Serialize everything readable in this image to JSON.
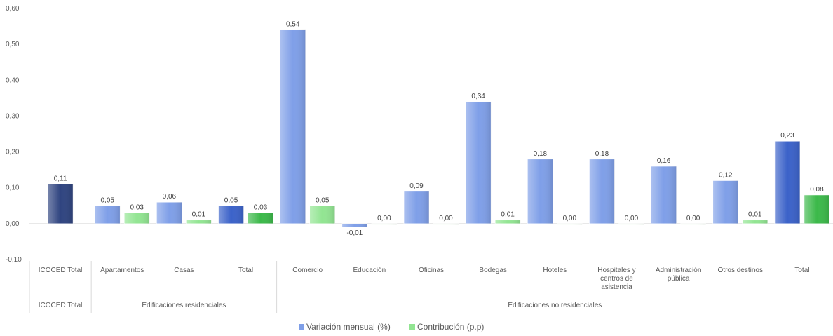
{
  "chart_data": {
    "type": "bar",
    "ylim": [
      -0.1,
      0.6
    ],
    "yticks": [
      "-0,10",
      "0,00",
      "0,10",
      "0,20",
      "0,30",
      "0,40",
      "0,50",
      "0,60"
    ],
    "legend_position": "bottom",
    "series": [
      {
        "name": "Variación mensual (%)",
        "color": "#7f9fe8"
      },
      {
        "name": "Contribución (p.p)",
        "color": "#92e592"
      }
    ],
    "bars": [
      {
        "cat": 0,
        "series": 0,
        "value": 0.11,
        "label": "0,11",
        "color": "#2f4480"
      },
      {
        "cat": 1,
        "series": 0,
        "value": 0.05,
        "label": "0,05"
      },
      {
        "cat": 1,
        "series": 1,
        "value": 0.03,
        "label": "0,03"
      },
      {
        "cat": 2,
        "series": 0,
        "value": 0.06,
        "label": "0,06"
      },
      {
        "cat": 2,
        "series": 1,
        "value": 0.01,
        "label": "0,01"
      },
      {
        "cat": 3,
        "series": 0,
        "value": 0.05,
        "label": "0,05",
        "color": "#3b62c9"
      },
      {
        "cat": 3,
        "series": 1,
        "value": 0.03,
        "label": "0,03",
        "color": "#3cb94a"
      },
      {
        "cat": 4,
        "series": 0,
        "value": 0.54,
        "label": "0,54"
      },
      {
        "cat": 4,
        "series": 1,
        "value": 0.05,
        "label": "0,05"
      },
      {
        "cat": 5,
        "series": 0,
        "value": -0.01,
        "label": "-0,01"
      },
      {
        "cat": 5,
        "series": 1,
        "value": 0.0,
        "label": "0,00"
      },
      {
        "cat": 6,
        "series": 0,
        "value": 0.09,
        "label": "0,09"
      },
      {
        "cat": 6,
        "series": 1,
        "value": 0.0,
        "label": "0,00"
      },
      {
        "cat": 7,
        "series": 0,
        "value": 0.34,
        "label": "0,34"
      },
      {
        "cat": 7,
        "series": 1,
        "value": 0.01,
        "label": "0,01"
      },
      {
        "cat": 8,
        "series": 0,
        "value": 0.18,
        "label": "0,18"
      },
      {
        "cat": 8,
        "series": 1,
        "value": 0.0,
        "label": "0,00"
      },
      {
        "cat": 9,
        "series": 0,
        "value": 0.18,
        "label": "0,18"
      },
      {
        "cat": 9,
        "series": 1,
        "value": 0.0,
        "label": "0,00"
      },
      {
        "cat": 10,
        "series": 0,
        "value": 0.16,
        "label": "0,16"
      },
      {
        "cat": 10,
        "series": 1,
        "value": 0.0,
        "label": "0,00"
      },
      {
        "cat": 11,
        "series": 0,
        "value": 0.12,
        "label": "0,12"
      },
      {
        "cat": 11,
        "series": 1,
        "value": 0.01,
        "label": "0,01"
      },
      {
        "cat": 12,
        "series": 0,
        "value": 0.23,
        "label": "0,23",
        "color": "#3b62c9"
      },
      {
        "cat": 12,
        "series": 1,
        "value": 0.08,
        "label": "0,08",
        "color": "#3cb94a"
      }
    ],
    "categories": [
      [
        "ICOCED Total"
      ],
      [
        "Apartamentos"
      ],
      [
        "Casas"
      ],
      [
        "Total"
      ],
      [
        "Comercio"
      ],
      [
        "Educación"
      ],
      [
        "Oficinas"
      ],
      [
        "Bodegas"
      ],
      [
        "Hoteles"
      ],
      [
        "Hospitales y",
        "centros de",
        "asistencia"
      ],
      [
        "Administración",
        "pública"
      ],
      [
        "Otros destinos"
      ],
      [
        "Total"
      ]
    ],
    "groups": [
      {
        "label": "ICOCED Total",
        "start": 0,
        "end": 0
      },
      {
        "label": "Edificaciones residenciales",
        "start": 1,
        "end": 3
      },
      {
        "label": "Edificaciones no residenciales",
        "start": 4,
        "end": 12
      }
    ]
  }
}
